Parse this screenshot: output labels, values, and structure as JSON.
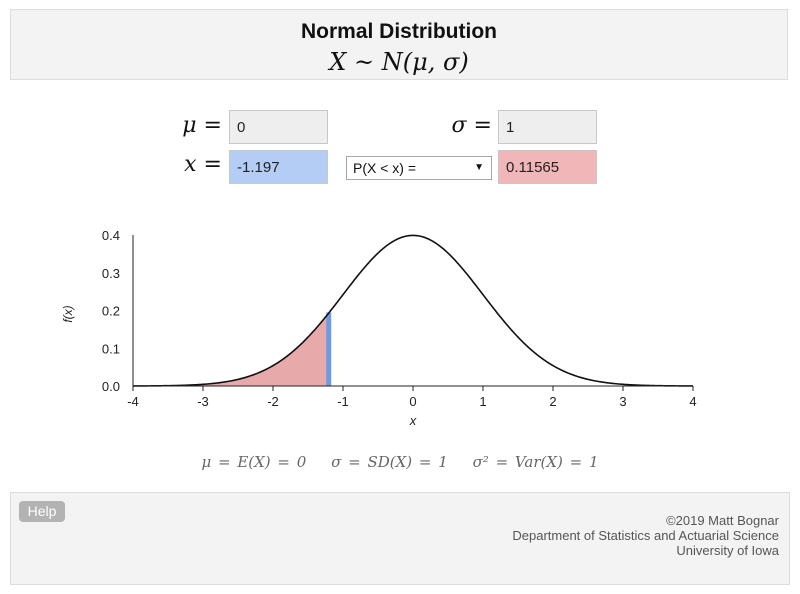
{
  "header": {
    "title": "Normal Distribution",
    "formula": "X ~ N(μ, σ)"
  },
  "inputs": {
    "mu_label": "μ =",
    "mu_value": "0",
    "sigma_label": "σ =",
    "sigma_value": "1",
    "x_label": "x =",
    "x_value": "-1.197",
    "probability_select": "P(X < x) =",
    "probability_result": "0.11565"
  },
  "summary": {
    "mean": "μ = E(X) = 0",
    "sd": "σ = SD(X) = 1",
    "variance": "σ² = Var(X) = 1"
  },
  "footer": {
    "help_label": "Help",
    "credit_lines": [
      "©2019 Matt Bognar",
      "Department of Statistics and Actuarial Science",
      "University of Iowa"
    ]
  },
  "colors": {
    "shaded_area": "#e8a9ab",
    "x_marker": "#6f9be6",
    "curve": "#111111"
  },
  "chart_data": {
    "type": "area",
    "function": "normal_pdf",
    "mu": 0,
    "sigma": 1,
    "x_marker": -1.197,
    "shade": "left",
    "xlabel": "x",
    "ylabel": "f(x)",
    "xlim": [
      -4,
      4
    ],
    "ylim": [
      0,
      0.4
    ],
    "x_ticks": [
      "-4",
      "-3",
      "-2",
      "-1",
      "0",
      "1",
      "2",
      "3",
      "4"
    ],
    "y_ticks": [
      "0.0",
      "0.1",
      "0.2",
      "0.3",
      "0.4"
    ]
  }
}
